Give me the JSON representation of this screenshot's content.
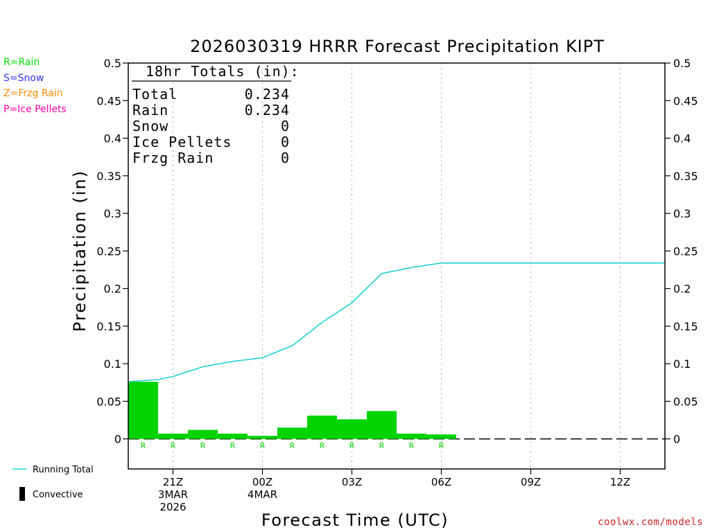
{
  "chart_data": {
    "type": "bar+line",
    "title": "2026030319 HRRR Forecast Precipitation KIPT",
    "ylabel": "Precipitation (in)",
    "xlabel": "Forecast Time (UTC)",
    "ylim": [
      -0.04,
      0.5
    ],
    "y_ticks": [
      0,
      0.05,
      0.1,
      0.15,
      0.2,
      0.25,
      0.3,
      0.35,
      0.4,
      0.45,
      0.5
    ],
    "y_tick_labels": [
      "0",
      "0.05",
      "0.1",
      "0.15",
      "0.2",
      "0.25",
      "0.3",
      "0.35",
      "0.4",
      "0.45",
      "0.5"
    ],
    "x_range_hours": [
      -1.5,
      16.5
    ],
    "x_ticks": [
      {
        "hour": 0,
        "lines": [
          "21Z",
          "3MAR",
          "2026"
        ]
      },
      {
        "hour": 3,
        "lines": [
          "00Z",
          "4MAR"
        ]
      },
      {
        "hour": 6,
        "lines": [
          "03Z"
        ]
      },
      {
        "hour": 9,
        "lines": [
          "06Z"
        ]
      },
      {
        "hour": 12,
        "lines": [
          "09Z"
        ]
      },
      {
        "hour": 15,
        "lines": [
          "12Z"
        ]
      }
    ],
    "hourly_precip": {
      "name": "Rain",
      "color": "#00d400",
      "hours": [
        -1,
        0,
        1,
        2,
        3,
        4,
        5,
        6,
        7,
        8,
        9
      ],
      "values": [
        0.076,
        0.007,
        0.012,
        0.007,
        0.004,
        0.015,
        0.031,
        0.026,
        0.037,
        0.007,
        0.006
      ],
      "type_labels": [
        "R",
        "R",
        "R",
        "R",
        "R",
        "R",
        "R",
        "R",
        "R",
        "R",
        "R"
      ]
    },
    "running_total": {
      "name": "Running Total",
      "color": "#00cccc",
      "hours": [
        -1.5,
        -0.5,
        0,
        1,
        2,
        3,
        4,
        5,
        6,
        7,
        8,
        9,
        16.5
      ],
      "values": [
        0.076,
        0.079,
        0.083,
        0.096,
        0.103,
        0.108,
        0.124,
        0.155,
        0.181,
        0.22,
        0.228,
        0.234,
        0.234
      ]
    },
    "totals_box": {
      "heading": "18hr Totals (in):",
      "rows": [
        {
          "label": "Total",
          "value": "0.234"
        },
        {
          "label": "Rain",
          "value": "0.234"
        },
        {
          "label": "Snow",
          "value": "0"
        },
        {
          "label": "Ice Pellets",
          "value": "0"
        },
        {
          "label": "Frzg Rain",
          "value": "0"
        }
      ]
    },
    "legend": {
      "running_total_label": "Running Total",
      "convective_label": "Convective"
    }
  },
  "type_legend": [
    {
      "text": "R=Rain",
      "color": "#00dd00"
    },
    {
      "text": "S=Snow",
      "color": "#3333ff"
    },
    {
      "text": "Z=Frzg Rain",
      "color": "#ff8800"
    },
    {
      "text": "P=Ice Pellets",
      "color": "#ff00aa"
    }
  ],
  "credit": "coolwx.com/models"
}
